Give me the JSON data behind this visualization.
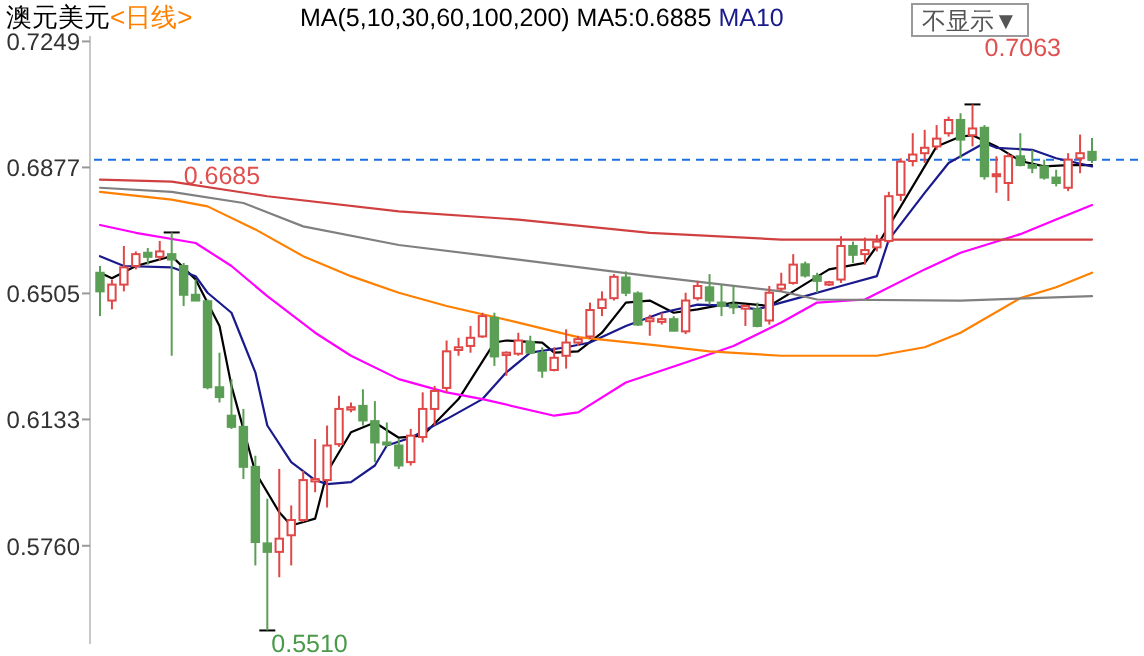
{
  "chart_data": {
    "type": "candlestick",
    "title": "澳元美元",
    "subtitle": "<日线>",
    "legend_title": "MA(5,10,30,60,100,200)",
    "legend": "top",
    "grid": false,
    "categories": [
      null,
      null,
      null,
      null,
      null,
      null,
      null,
      null,
      null,
      null,
      null,
      null,
      null,
      null,
      null,
      null,
      null,
      null,
      null,
      null,
      null,
      null,
      null,
      null,
      null,
      null,
      null,
      null,
      null,
      null,
      null,
      null,
      null,
      null,
      null,
      null,
      null,
      null,
      null,
      null,
      null,
      null,
      null,
      null,
      null,
      null,
      null,
      null,
      null,
      null,
      null,
      null,
      null,
      null,
      null,
      null,
      null,
      null,
      null,
      null,
      null,
      null,
      null,
      null,
      null,
      null,
      null,
      null,
      null,
      null,
      null,
      null,
      null,
      null,
      null,
      null,
      null,
      null,
      null,
      null,
      null,
      null,
      null,
      null
    ],
    "ohlc": [
      [
        0.6566,
        0.6586,
        0.6438,
        0.6511
      ],
      [
        0.6484,
        0.6546,
        0.6458,
        0.6531
      ],
      [
        0.6531,
        0.6645,
        0.6511,
        0.6582
      ],
      [
        0.6586,
        0.6629,
        0.6576,
        0.6621
      ],
      [
        0.6625,
        0.6639,
        0.659,
        0.6613
      ],
      [
        0.6613,
        0.666,
        0.6601,
        0.6629
      ],
      [
        0.6621,
        0.6685,
        0.6321,
        0.6605
      ],
      [
        0.6586,
        0.6595,
        0.6468,
        0.6501
      ],
      [
        0.6501,
        0.6546,
        0.6484,
        0.6484
      ],
      [
        0.6482,
        0.6487,
        0.6222,
        0.6228
      ],
      [
        0.6228,
        0.633,
        0.6183,
        0.6199
      ],
      [
        0.6144,
        0.6252,
        0.6105,
        0.6111
      ],
      [
        0.6111,
        0.6164,
        0.5957,
        0.5993
      ],
      [
        0.5993,
        0.6026,
        0.5702,
        0.5771
      ],
      [
        0.5767,
        0.5899,
        0.551,
        0.5742
      ],
      [
        0.5742,
        0.5987,
        0.5667,
        0.5781
      ],
      [
        0.5791,
        0.5879,
        0.5702,
        0.5836
      ],
      [
        0.5836,
        0.5981,
        0.583,
        0.5954
      ],
      [
        0.595,
        0.6075,
        0.5918,
        0.5957
      ],
      [
        0.5954,
        0.6115,
        0.5873,
        0.6056
      ],
      [
        0.606,
        0.6203,
        0.6052,
        0.6164
      ],
      [
        0.6162,
        0.6183,
        0.6154,
        0.6169
      ],
      [
        0.6173,
        0.6222,
        0.6115,
        0.613
      ],
      [
        0.6128,
        0.6187,
        0.6007,
        0.6065
      ],
      [
        0.6065,
        0.6124,
        0.6052,
        0.606
      ],
      [
        0.6056,
        0.6075,
        0.5987,
        0.5997
      ],
      [
        0.6007,
        0.6105,
        0.5997,
        0.6085
      ],
      [
        0.6081,
        0.6213,
        0.6065,
        0.6164
      ],
      [
        0.6164,
        0.6232,
        0.6115,
        0.6217
      ],
      [
        0.6226,
        0.6366,
        0.6213,
        0.6334
      ],
      [
        0.6338,
        0.6374,
        0.6321,
        0.6346
      ],
      [
        0.635,
        0.6409,
        0.633,
        0.6374
      ],
      [
        0.6378,
        0.6448,
        0.6374,
        0.6438
      ],
      [
        0.6433,
        0.6448,
        0.6291,
        0.6319
      ],
      [
        0.6323,
        0.6334,
        0.6262,
        0.633
      ],
      [
        0.6327,
        0.6389,
        0.6321,
        0.6366
      ],
      [
        0.6362,
        0.638,
        0.6327,
        0.633
      ],
      [
        0.633,
        0.6346,
        0.6256,
        0.6277
      ],
      [
        0.6279,
        0.6346,
        0.6275,
        0.6315
      ],
      [
        0.6321,
        0.6399,
        0.6283,
        0.636
      ],
      [
        0.636,
        0.638,
        0.635,
        0.637
      ],
      [
        0.6378,
        0.6478,
        0.637,
        0.6456
      ],
      [
        0.6462,
        0.6511,
        0.6438,
        0.6487
      ],
      [
        0.6491,
        0.6562,
        0.6484,
        0.6554
      ],
      [
        0.6552,
        0.657,
        0.6497,
        0.6507
      ],
      [
        0.6505,
        0.6511,
        0.6409,
        0.6413
      ],
      [
        0.6423,
        0.6442,
        0.638,
        0.6431
      ],
      [
        0.6421,
        0.6448,
        0.6413,
        0.6429
      ],
      [
        0.6429,
        0.6438,
        0.6393,
        0.6395
      ],
      [
        0.6393,
        0.6507,
        0.6385,
        0.6484
      ],
      [
        0.6491,
        0.6542,
        0.6484,
        0.6527
      ],
      [
        0.6523,
        0.6562,
        0.6472,
        0.6484
      ],
      [
        0.6478,
        0.6531,
        0.6438,
        0.6468
      ],
      [
        0.6472,
        0.6527,
        0.6444,
        0.6464
      ],
      [
        0.646,
        0.6472,
        0.6409,
        0.6468
      ],
      [
        0.6458,
        0.6478,
        0.6405,
        0.6409
      ],
      [
        0.6425,
        0.6527,
        0.6413,
        0.6507
      ],
      [
        0.6519,
        0.6566,
        0.6511,
        0.6531
      ],
      [
        0.6536,
        0.6621,
        0.6531,
        0.659
      ],
      [
        0.6591,
        0.6599,
        0.6552,
        0.6558
      ],
      [
        0.6556,
        0.6566,
        0.6507,
        0.6542
      ],
      [
        0.6531,
        0.6542,
        0.6527,
        0.6538
      ],
      [
        0.6546,
        0.6674,
        0.6536,
        0.6645
      ],
      [
        0.6645,
        0.6658,
        0.6595,
        0.6619
      ],
      [
        0.6621,
        0.667,
        0.659,
        0.6633
      ],
      [
        0.6641,
        0.6678,
        0.6629,
        0.6658
      ],
      [
        0.666,
        0.6805,
        0.6654,
        0.6792
      ],
      [
        0.6796,
        0.6904,
        0.6778,
        0.6894
      ],
      [
        0.6896,
        0.6978,
        0.688,
        0.6915
      ],
      [
        0.6919,
        0.6988,
        0.689,
        0.6935
      ],
      [
        0.6939,
        0.7002,
        0.6929,
        0.6962
      ],
      [
        0.6978,
        0.7027,
        0.6968,
        0.7017
      ],
      [
        0.7017,
        0.7037,
        0.6904,
        0.6959
      ],
      [
        0.6972,
        0.7063,
        0.6939,
        0.6992
      ],
      [
        0.6994,
        0.7002,
        0.6841,
        0.6851
      ],
      [
        0.6851,
        0.691,
        0.6802,
        0.6857
      ],
      [
        0.6831,
        0.6919,
        0.6778,
        0.691
      ],
      [
        0.691,
        0.6978,
        0.688,
        0.6884
      ],
      [
        0.6884,
        0.6929,
        0.686,
        0.6876
      ],
      [
        0.688,
        0.69,
        0.6841,
        0.6847
      ],
      [
        0.6847,
        0.687,
        0.6821,
        0.6831
      ],
      [
        0.6817,
        0.6919,
        0.6807,
        0.69
      ],
      [
        0.6904,
        0.6974,
        0.686,
        0.6919
      ],
      [
        0.6923,
        0.6964,
        0.689,
        0.69
      ]
    ],
    "colors": [
      "#5b9e55",
      "#e04848",
      "#e04848",
      "#e04848",
      "#5b9e55",
      "#e04848",
      "#5b9e55",
      "#5b9e55",
      "#5b9e55",
      "#5b9e55",
      "#5b9e55",
      "#5b9e55",
      "#5b9e55",
      "#5b9e55",
      "#5b9e55",
      "#e04848",
      "#e04848",
      "#e04848",
      "#e04848",
      "#e04848",
      "#e04848",
      "#e04848",
      "#5b9e55",
      "#5b9e55",
      "#5b9e55",
      "#5b9e55",
      "#e04848",
      "#e04848",
      "#e04848",
      "#e04848",
      "#e04848",
      "#e04848",
      "#e04848",
      "#5b9e55",
      "#e04848",
      "#e04848",
      "#5b9e55",
      "#5b9e55",
      "#e04848",
      "#e04848",
      "#e04848",
      "#e04848",
      "#e04848",
      "#e04848",
      "#5b9e55",
      "#5b9e55",
      "#e04848",
      "#e04848",
      "#5b9e55",
      "#e04848",
      "#e04848",
      "#5b9e55",
      "#5b9e55",
      "#5b9e55",
      "#e04848",
      "#5b9e55",
      "#e04848",
      "#e04848",
      "#e04848",
      "#5b9e55",
      "#5b9e55",
      "#e04848",
      "#e04848",
      "#5b9e55",
      "#e04848",
      "#e04848",
      "#e04848",
      "#e04848",
      "#e04848",
      "#e04848",
      "#e04848",
      "#e04848",
      "#5b9e55",
      "#e04848",
      "#5b9e55",
      "#e04848",
      "#e04848",
      "#5b9e55",
      "#5b9e55",
      "#5b9e55",
      "#5b9e55",
      "#e04848",
      "#e04848",
      "#5b9e55"
    ],
    "ylim": [
      0.547,
      0.7265
    ],
    "yticks": [
      {
        "value": 0.576,
        "label": "0.5760"
      },
      0.6133,
      0.6505,
      0.6877,
      0.7249
    ],
    "series": [
      {
        "type": "line",
        "name": "MA5:0.6885",
        "color": "#000000",
        "values": [
          0.6566,
          0.655,
          null,
          0.6586,
          null,
          null,
          0.6615,
          null,
          0.6546,
          null,
          0.6409,
          0.6232,
          null,
          0.5977,
          null,
          0.5859,
          0.582,
          null,
          0.584,
          0.5977,
          null,
          0.6095,
          null,
          0.6124,
          null,
          0.6079,
          null,
          0.6085,
          null,
          null,
          0.6193,
          null,
          null,
          0.636,
          0.6366,
          null,
          null,
          0.636,
          0.633,
          null,
          0.6334,
          null,
          0.6389,
          null,
          0.6478,
          null,
          0.6484,
          null,
          0.6448,
          null,
          0.6458,
          null,
          null,
          0.6478,
          null,
          null,
          0.6468,
          null,
          0.6511,
          null,
          null,
          0.6576,
          null,
          null,
          0.6595,
          0.6645,
          null,
          0.6762,
          null,
          null,
          0.6939,
          null,
          0.6968,
          0.6972,
          null,
          0.6939,
          null,
          0.6896,
          null,
          0.688,
          null,
          0.6884,
          null,
          0.6884
        ]
      },
      {
        "type": "line",
        "name": "MA10",
        "color": "#1a1a8c",
        "values": [
          0.6615,
          null,
          0.6586,
          null,
          null,
          null,
          0.6582,
          null,
          0.6556,
          0.6507,
          null,
          0.6448,
          null,
          0.6272,
          0.6115,
          null,
          0.6007,
          null,
          0.5954,
          0.5942,
          null,
          0.5948,
          null,
          0.5997,
          0.6056,
          null,
          0.6079,
          null,
          null,
          0.6134,
          null,
          null,
          0.6193,
          null,
          0.6272,
          null,
          0.633,
          null,
          null,
          0.6346,
          null,
          0.636,
          null,
          null,
          0.6409,
          null,
          null,
          0.6448,
          null,
          null,
          0.6472,
          null,
          null,
          0.6468,
          null,
          0.6458,
          null,
          0.6478,
          null,
          0.6497,
          null,
          null,
          0.6527,
          null,
          null,
          0.6556,
          0.6664,
          null,
          null,
          0.6802,
          null,
          0.689,
          null,
          null,
          0.6949,
          0.6935,
          null,
          null,
          0.6929,
          null,
          0.6904,
          null,
          null,
          0.688
        ]
      },
      {
        "type": "line",
        "color": "#ff00ff",
        "values": [
          0.6707,
          null,
          null,
          0.6684,
          null,
          null,
          null,
          null,
          0.6654,
          null,
          null,
          0.6586,
          null,
          null,
          0.6497,
          null,
          null,
          null,
          0.6389,
          null,
          null,
          0.6321,
          null,
          null,
          null,
          0.6252,
          null,
          null,
          null,
          0.6213,
          null,
          null,
          0.6193,
          null,
          null,
          null,
          null,
          null,
          0.6144,
          null,
          0.6154,
          null,
          null,
          null,
          0.6242,
          null,
          null,
          null,
          null,
          0.6301,
          null,
          null,
          null,
          0.635,
          null,
          null,
          null,
          0.6419,
          null,
          null,
          0.6478,
          null,
          null,
          null,
          0.6487,
          null,
          null,
          null,
          null,
          0.6576,
          null,
          null,
          0.6625,
          null,
          null,
          null,
          null,
          0.668,
          null,
          null,
          0.6723,
          null,
          null,
          0.6766
        ]
      },
      {
        "type": "line",
        "color": "#ff8000",
        "values": [
          0.6805,
          null,
          null,
          null,
          null,
          null,
          0.6782,
          null,
          null,
          0.6762,
          null,
          null,
          null,
          0.6694,
          null,
          null,
          null,
          0.6615,
          null,
          null,
          null,
          0.6556,
          null,
          null,
          null,
          0.6507,
          null,
          null,
          null,
          0.6468,
          null,
          null,
          null,
          null,
          null,
          0.6419,
          null,
          null,
          null,
          null,
          0.6376,
          null,
          null,
          null,
          null,
          null,
          0.6354,
          null,
          null,
          null,
          null,
          0.6334,
          null,
          null,
          null,
          null,
          null,
          0.6321,
          null,
          null,
          null,
          null,
          null,
          null,
          null,
          0.6321,
          null,
          null,
          null,
          0.6346,
          null,
          null,
          0.6389,
          null,
          null,
          null,
          null,
          0.6491,
          null,
          null,
          0.6523,
          null,
          null,
          0.6566
        ]
      },
      {
        "type": "line",
        "color": "#808080",
        "values": [
          0.6817,
          null,
          null,
          null,
          null,
          null,
          0.6805,
          null,
          null,
          null,
          null,
          null,
          0.6772,
          null,
          null,
          null,
          null,
          0.6703,
          null,
          null,
          null,
          null,
          null,
          null,
          null,
          0.6648,
          null,
          null,
          null,
          null,
          null,
          null,
          null,
          null,
          null,
          0.6605,
          null,
          null,
          null,
          null,
          null,
          null,
          null,
          null,
          null,
          null,
          0.6556,
          null,
          null,
          null,
          null,
          null,
          null,
          null,
          null,
          null,
          null,
          0.6511,
          null,
          null,
          0.6487,
          null,
          null,
          null,
          null,
          null,
          null,
          null,
          null,
          null,
          null,
          null,
          0.6484,
          null,
          null,
          null,
          null,
          null,
          0.6491,
          null,
          null,
          null,
          null,
          0.6497
        ]
      },
      {
        "type": "line",
        "color": "#d04040",
        "values": [
          0.6841,
          null,
          null,
          null,
          null,
          null,
          0.6835,
          null,
          null,
          null,
          null,
          null,
          null,
          null,
          0.6792,
          null,
          null,
          null,
          null,
          null,
          null,
          null,
          null,
          null,
          null,
          0.6747,
          null,
          null,
          null,
          null,
          null,
          null,
          null,
          null,
          null,
          0.6723,
          null,
          null,
          null,
          null,
          null,
          null,
          null,
          null,
          null,
          null,
          0.6684,
          null,
          null,
          null,
          null,
          null,
          null,
          null,
          null,
          null,
          null,
          0.6664,
          null,
          null,
          null,
          null,
          null,
          null,
          null,
          null,
          null,
          null,
          null,
          null,
          null,
          null,
          null,
          null,
          null,
          null,
          null,
          null,
          null,
          null,
          null,
          null,
          null,
          0.6664
        ]
      }
    ],
    "ref_lines": [
      {
        "axis": "y",
        "value": 0.69,
        "color": "#1e6fe0",
        "line_style": "dashed"
      }
    ],
    "annotations": [
      "0.6685",
      "0.7063",
      "0.5510",
      "不显示▼"
    ]
  }
}
